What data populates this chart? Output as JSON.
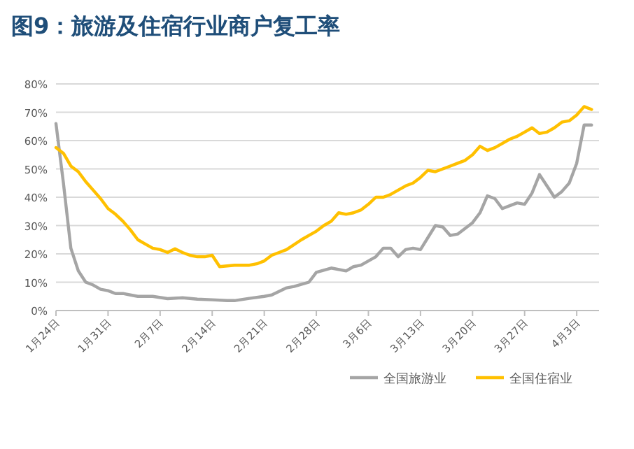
{
  "chart_data": {
    "type": "line",
    "title": "图9：旅游及住宿行业商户复工率",
    "xlim": [
      "--01-24",
      "--04-06"
    ],
    "xticks": [
      {
        "value": "--01-24",
        "label": "1月24日"
      },
      {
        "value": "--01-31",
        "label": "1月31日"
      },
      {
        "value": "--02-07",
        "label": "2月7日"
      },
      {
        "value": "--02-14",
        "label": "2月14日"
      },
      {
        "value": "--02-21",
        "label": "2月21日"
      },
      {
        "value": "--02-28",
        "label": "2月28日"
      },
      {
        "value": "--03-06",
        "label": "3月6日"
      },
      {
        "value": "--03-13",
        "label": "3月13日"
      },
      {
        "value": "--03-20",
        "label": "3月20日"
      },
      {
        "value": "--03-27",
        "label": "3月27日"
      },
      {
        "value": "--04-03",
        "label": "4月3日"
      }
    ],
    "ylim": [
      0,
      80
    ],
    "yticks": [
      {
        "value": 0,
        "label": "0%"
      },
      {
        "value": 10,
        "label": "10%"
      },
      {
        "value": 20,
        "label": "20%"
      },
      {
        "value": 30,
        "label": "30%"
      },
      {
        "value": 40,
        "label": "40%"
      },
      {
        "value": 50,
        "label": "50%"
      },
      {
        "value": 60,
        "label": "60%"
      },
      {
        "value": 70,
        "label": "70%"
      },
      {
        "value": 80,
        "label": "80%"
      }
    ],
    "grid": "y",
    "legend": "bottom",
    "marker": "none",
    "line_style": "solid",
    "series": [
      {
        "name": "全国旅游业",
        "color": "#a5a5a5",
        "x": [
          "--01-24",
          "--01-25",
          "--01-26",
          "--01-27",
          "--01-28",
          "--01-29",
          "--01-30",
          "--01-31",
          "--02-01",
          "--02-02",
          "--02-03",
          "--02-04",
          "--02-06",
          "--02-08",
          "--02-10",
          "--02-12",
          "--02-14",
          "--02-16",
          "--02-17",
          "--02-19",
          "--02-21",
          "--02-22",
          "--02-24",
          "--02-25",
          "--02-27",
          "--02-28",
          "--03-01",
          "--03-03",
          "--03-04",
          "--03-05",
          "--03-07",
          "--03-08",
          "--03-09",
          "--03-10",
          "--03-11",
          "--03-12",
          "--03-13",
          "--03-15",
          "--03-16",
          "--03-17",
          "--03-18",
          "--03-20",
          "--03-21",
          "--03-22",
          "--03-23",
          "--03-24",
          "--03-25",
          "--03-26",
          "--03-27",
          "--03-28",
          "--03-29",
          "--03-30",
          "--03-31",
          "--04-01",
          "--04-02",
          "--04-03",
          "--04-04",
          "--04-05"
        ],
        "values": [
          66,
          45,
          22,
          14,
          10,
          9,
          7.5,
          7,
          6,
          6,
          5.5,
          5,
          5,
          4.2,
          4.5,
          4,
          3.8,
          3.5,
          3.5,
          4.3,
          5,
          5.5,
          8,
          8.5,
          10,
          13.5,
          15,
          14,
          15.5,
          16,
          19,
          22,
          22,
          19,
          21.5,
          22,
          21.5,
          30,
          29.5,
          26.5,
          27,
          31,
          34.5,
          40.5,
          39.5,
          36,
          37,
          38,
          37.5,
          41.5,
          48,
          44,
          40,
          42,
          45,
          52,
          65.5,
          65.5
        ]
      },
      {
        "name": "全国住宿业",
        "color": "#ffc000",
        "x": [
          "--01-24",
          "--01-25",
          "--01-26",
          "--01-27",
          "--01-28",
          "--01-29",
          "--01-30",
          "--01-31",
          "--02-01",
          "--02-02",
          "--02-03",
          "--02-04",
          "--02-05",
          "--02-06",
          "--02-07",
          "--02-08",
          "--02-09",
          "--02-10",
          "--02-11",
          "--02-12",
          "--02-13",
          "--02-14",
          "--02-15",
          "--02-17",
          "--02-19",
          "--02-20",
          "--02-21",
          "--02-22",
          "--02-23",
          "--02-24",
          "--02-26",
          "--02-27",
          "--02-28",
          "--02-29",
          "--03-01",
          "--03-02",
          "--03-03",
          "--03-04",
          "--03-05",
          "--03-06",
          "--03-07",
          "--03-08",
          "--03-09",
          "--03-10",
          "--03-11",
          "--03-12",
          "--03-13",
          "--03-14",
          "--03-15",
          "--03-16",
          "--03-17",
          "--03-18",
          "--03-19",
          "--03-20",
          "--03-21",
          "--03-22",
          "--03-23",
          "--03-24",
          "--03-25",
          "--03-26",
          "--03-27",
          "--03-28",
          "--03-29",
          "--03-30",
          "--03-31",
          "--04-01",
          "--04-02",
          "--04-03",
          "--04-04",
          "--04-05"
        ],
        "values": [
          57.5,
          55.5,
          51,
          49,
          45.5,
          42.5,
          39.5,
          36,
          34,
          31.5,
          28.5,
          25,
          23.5,
          22,
          21.5,
          20.5,
          21.8,
          20.5,
          19.5,
          19,
          19,
          19.5,
          15.5,
          16,
          16,
          16.5,
          17.5,
          19.5,
          20.5,
          21.5,
          25,
          26.5,
          28,
          30,
          31.5,
          34.5,
          34,
          34.5,
          35.5,
          37.5,
          40,
          40,
          41,
          42.5,
          44,
          45,
          47,
          49.5,
          49,
          50,
          51,
          52,
          53,
          55,
          58,
          56.5,
          57.5,
          59,
          60.5,
          61.5,
          63,
          64.5,
          62.5,
          63,
          64.5,
          66.5,
          67,
          69,
          72,
          71
        ]
      }
    ]
  }
}
